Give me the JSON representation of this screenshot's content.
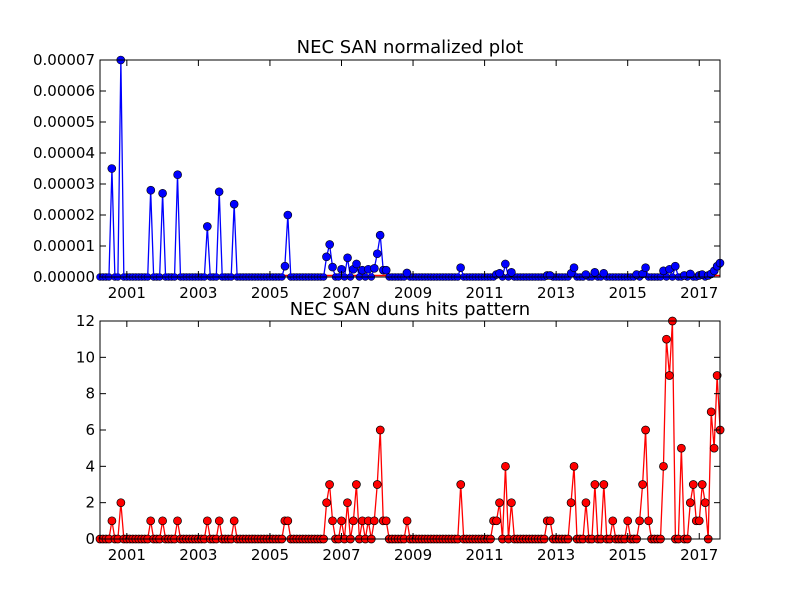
{
  "chart_data": [
    {
      "type": "line",
      "title": "NEC SAN normalized plot",
      "xlabel": "",
      "ylabel": "",
      "xlim": [
        2000.25,
        2017.58
      ],
      "ylim": [
        0,
        7e-05
      ],
      "grid": false,
      "x_ticks": [
        2001,
        2003,
        2005,
        2007,
        2009,
        2011,
        2013,
        2015,
        2017
      ],
      "x_tick_labels": [
        "2001",
        "2003",
        "2005",
        "2007",
        "2009",
        "2011",
        "2013",
        "2015",
        "2017"
      ],
      "y_ticks": [
        0,
        1e-05,
        2e-05,
        3e-05,
        4e-05,
        5e-05,
        6e-05,
        7e-05
      ],
      "y_tick_labels": [
        "0.00000",
        "0.00001",
        "0.00002",
        "0.00003",
        "0.00004",
        "0.00005",
        "0.00006",
        "0.00007"
      ],
      "colors": {
        "line": "#0000ff",
        "marker": "#0000ff",
        "baseline": "#ff0000"
      },
      "series": [
        {
          "x": [
            2000.58,
            2000.83,
            2001.67,
            2002.0,
            2002.42,
            2003.25,
            2003.58,
            2004.0,
            2005.42,
            2005.5,
            2006.58,
            2006.67,
            2006.75,
            2007.0,
            2007.17,
            2007.33,
            2007.42,
            2007.58,
            2007.75,
            2007.92,
            2008.0,
            2008.08,
            2008.17,
            2008.25,
            2008.83,
            2010.33,
            2011.33,
            2011.42,
            2011.58,
            2011.75,
            2012.75,
            2012.83,
            2013.42,
            2013.5,
            2013.83,
            2014.08,
            2014.33,
            2015.25,
            2015.42,
            2015.5,
            2016.0,
            2016.17,
            2016.33,
            2016.58,
            2016.75,
            2017.0,
            2017.08,
            2017.25,
            2017.33,
            2017.42,
            2017.5,
            2017.58
          ],
          "y": [
            3.5e-05,
            7e-05,
            2.8e-05,
            2.7e-05,
            3.3e-05,
            1.63e-05,
            2.75e-05,
            2.35e-05,
            3.5e-06,
            2e-05,
            6.5e-06,
            1.05e-05,
            3.2e-06,
            2.5e-06,
            6.2e-06,
            2.5e-06,
            4.2e-06,
            2.2e-06,
            2.5e-06,
            2.8e-06,
            7.5e-06,
            1.35e-05,
            2.2e-06,
            2.2e-06,
            1.3e-06,
            3e-06,
            8e-07,
            1.2e-06,
            4.2e-06,
            1.5e-06,
            5e-07,
            5e-07,
            1.2e-06,
            3e-06,
            8e-07,
            1.5e-06,
            1.2e-06,
            8e-07,
            1e-06,
            3e-06,
            2e-06,
            2.5e-06,
            3.5e-06,
            5e-07,
            1e-06,
            5e-07,
            8e-07,
            5e-07,
            1e-06,
            2e-06,
            3.5e-06,
            4.5e-06
          ]
        }
      ]
    },
    {
      "type": "line",
      "title": "NEC SAN duns hits pattern",
      "xlabel": "",
      "ylabel": "",
      "xlim": [
        2000.25,
        2017.58
      ],
      "ylim": [
        0,
        12
      ],
      "grid": false,
      "x_ticks": [
        2001,
        2003,
        2005,
        2007,
        2009,
        2011,
        2013,
        2015,
        2017
      ],
      "x_tick_labels": [
        "2001",
        "2003",
        "2005",
        "2007",
        "2009",
        "2011",
        "2013",
        "2015",
        "2017"
      ],
      "y_ticks": [
        0,
        2,
        4,
        6,
        8,
        10,
        12
      ],
      "y_tick_labels": [
        "0",
        "2",
        "4",
        "6",
        "8",
        "10",
        "12"
      ],
      "colors": {
        "line": "#ff0000",
        "marker": "#ff0000",
        "marker_edge": "#000000"
      },
      "series": [
        {
          "x": [
            2000.58,
            2000.83,
            2001.67,
            2002.0,
            2002.42,
            2003.25,
            2003.58,
            2004.0,
            2005.42,
            2005.5,
            2006.58,
            2006.67,
            2006.75,
            2007.0,
            2007.17,
            2007.33,
            2007.42,
            2007.58,
            2007.75,
            2007.92,
            2008.0,
            2008.08,
            2008.17,
            2008.25,
            2008.83,
            2010.33,
            2011.25,
            2011.33,
            2011.42,
            2011.58,
            2011.75,
            2012.75,
            2012.83,
            2013.42,
            2013.5,
            2013.83,
            2014.08,
            2014.33,
            2014.58,
            2015.0,
            2015.33,
            2015.42,
            2015.5,
            2015.58,
            2016.0,
            2016.08,
            2016.17,
            2016.25,
            2016.5,
            2016.75,
            2016.83,
            2016.92,
            2017.0,
            2017.08,
            2017.17,
            2017.25,
            2017.33,
            2017.42,
            2017.5,
            2017.58
          ],
          "y": [
            1,
            2,
            1,
            1,
            1,
            1,
            1,
            1,
            1,
            1,
            2,
            3,
            1,
            1,
            2,
            1,
            3,
            1,
            1,
            1,
            3,
            6,
            1,
            1,
            1,
            3,
            1,
            1,
            2,
            4,
            2,
            1,
            1,
            2,
            4,
            2,
            3,
            3,
            1,
            1,
            1,
            3,
            6,
            1,
            4,
            11,
            9,
            12,
            5,
            2,
            3,
            1,
            1,
            3,
            2,
            0,
            7,
            5,
            9,
            6
          ]
        }
      ]
    }
  ]
}
